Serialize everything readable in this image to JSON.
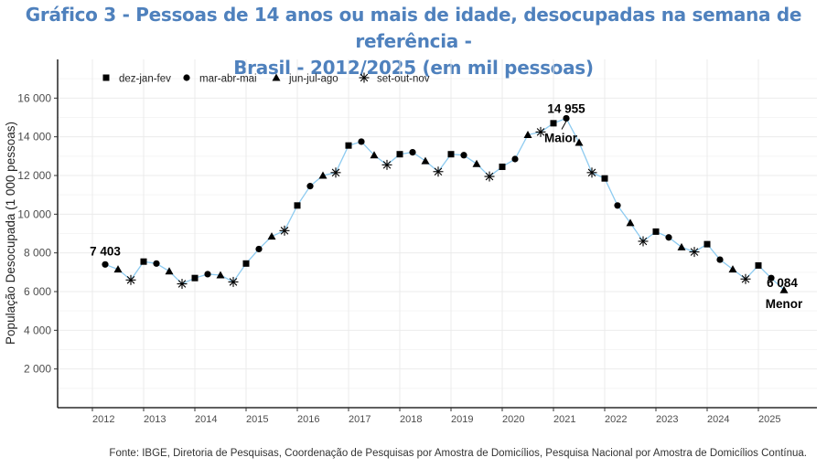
{
  "title": {
    "line1": "Gráfico 3 - Pessoas de 14 anos ou mais de idade, desocupadas na semana de referência -",
    "line2": "Brasil - 2012/2025 (em mil pessoas)"
  },
  "source": "Fonte: IBGE, Diretoria de Pesquisas, Coordenação de Pesquisas por Amostra de Domicílios, Pesquisa Nacional por Amostra de Domicílios Contínua.",
  "colors": {
    "title": "#4f81bd",
    "line": "#8ecbf0",
    "markers": "#000000",
    "grid": "#ebebeb"
  },
  "chart_data": {
    "type": "line",
    "title": "Gráfico 3 - Pessoas de 14 anos ou mais de idade, desocupadas na semana de referência - Brasil - 2012/2025 (em mil pessoas)",
    "xlabel": "",
    "ylabel": "População Desocupada (1 000 pessoas)",
    "ylim": [
      0,
      18000
    ],
    "yticks": [
      2000,
      4000,
      6000,
      8000,
      10000,
      12000,
      14000,
      16000
    ],
    "ytick_labels": [
      "2 000",
      "4 000",
      "6 000",
      "8 000",
      "10 000",
      "12 000",
      "14 000",
      "16 000"
    ],
    "xticks": [
      "2012",
      "2013",
      "2014",
      "2015",
      "2016",
      "2017",
      "2018",
      "2019",
      "2020",
      "2021",
      "2022",
      "2023",
      "2024",
      "2025"
    ],
    "grid": true,
    "legend": {
      "placement": "top-left",
      "entries": [
        {
          "label": "dez-jan-fev",
          "marker": "square"
        },
        {
          "label": "mar-abr-mai",
          "marker": "circle"
        },
        {
          "label": "jun-jul-ago",
          "marker": "triangle"
        },
        {
          "label": "set-out-nov",
          "marker": "asterisk"
        }
      ]
    },
    "start": {
      "year": 2012,
      "quarter_index": 1
    },
    "quarter_markers": [
      "square",
      "circle",
      "triangle",
      "asterisk"
    ],
    "values": [
      7403,
      7150,
      6600,
      7550,
      7450,
      7050,
      6400,
      6700,
      6900,
      6850,
      6500,
      7450,
      8200,
      8850,
      9150,
      10450,
      11450,
      12000,
      12150,
      13550,
      13750,
      13050,
      12550,
      13100,
      13200,
      12750,
      12200,
      13100,
      13050,
      12600,
      11950,
      12450,
      12850,
      14100,
      14250,
      14700,
      14955,
      13700,
      12150,
      11850,
      10450,
      9550,
      8600,
      9100,
      8800,
      8300,
      8050,
      8450,
      7650,
      7150,
      6650,
      7350,
      6700,
      6084
    ],
    "annotations": [
      {
        "text": "7 403",
        "target_index": 0,
        "kind": "first"
      },
      {
        "text": "14 955",
        "target_index": 36,
        "kind": "max"
      },
      {
        "text": "Maior",
        "target_index": 36,
        "kind": "max-label"
      },
      {
        "text": "6 084",
        "target_index": 53,
        "kind": "min"
      },
      {
        "text": "Menor",
        "target_index": 53,
        "kind": "min-label"
      }
    ]
  }
}
